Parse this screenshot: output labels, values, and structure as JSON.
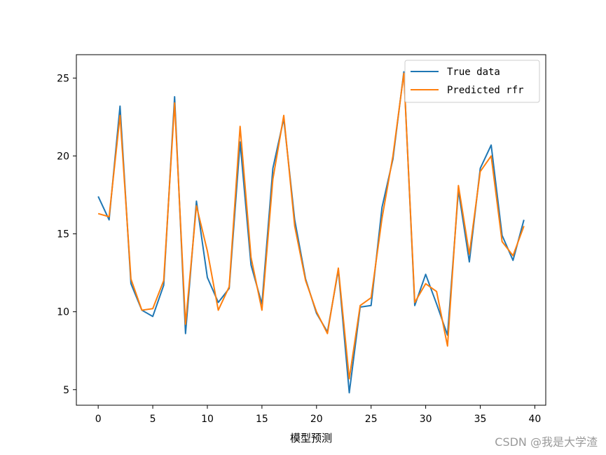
{
  "watermark": "CSDN @我是大学渣",
  "chart_data": {
    "type": "line",
    "title": "",
    "xlabel": "模型预测",
    "ylabel": "",
    "xlim": [
      -2,
      41
    ],
    "ylim": [
      4,
      26.5
    ],
    "xticks": [
      0,
      5,
      10,
      15,
      20,
      25,
      30,
      35,
      40
    ],
    "yticks": [
      5,
      10,
      15,
      20,
      25
    ],
    "grid": false,
    "legend_position": "top-right",
    "x": [
      0,
      1,
      2,
      3,
      4,
      5,
      6,
      7,
      8,
      9,
      10,
      11,
      12,
      13,
      14,
      15,
      16,
      17,
      18,
      19,
      20,
      21,
      22,
      23,
      24,
      25,
      26,
      27,
      28,
      29,
      30,
      31,
      32,
      33,
      34,
      35,
      36,
      37,
      38,
      39
    ],
    "series": [
      {
        "name": "True data",
        "color": "#1f77b4",
        "values": [
          17.4,
          15.9,
          23.2,
          11.8,
          10.1,
          9.7,
          11.7,
          23.8,
          8.6,
          17.1,
          12.2,
          10.6,
          11.5,
          20.9,
          13.0,
          10.5,
          19.2,
          22.4,
          15.9,
          12.1,
          9.9,
          8.7,
          12.7,
          4.8,
          10.3,
          10.4,
          16.7,
          19.8,
          25.4,
          10.4,
          12.4,
          10.5,
          8.5,
          17.8,
          13.2,
          19.2,
          20.7,
          14.9,
          13.3,
          15.9
        ],
        "stroke_width": 2
      },
      {
        "name": "Predicted rfr",
        "color": "#ff7f0e",
        "values": [
          16.3,
          16.1,
          22.6,
          12.1,
          10.1,
          10.2,
          12.0,
          23.4,
          9.2,
          16.8,
          13.9,
          10.1,
          11.6,
          21.9,
          13.5,
          10.1,
          18.5,
          22.6,
          15.5,
          12.0,
          10.0,
          8.6,
          12.8,
          5.7,
          10.4,
          10.9,
          16.0,
          20.0,
          25.3,
          10.6,
          11.8,
          11.3,
          7.8,
          18.1,
          13.7,
          19.0,
          20.0,
          14.5,
          13.6,
          15.5
        ],
        "stroke_width": 2
      }
    ]
  }
}
